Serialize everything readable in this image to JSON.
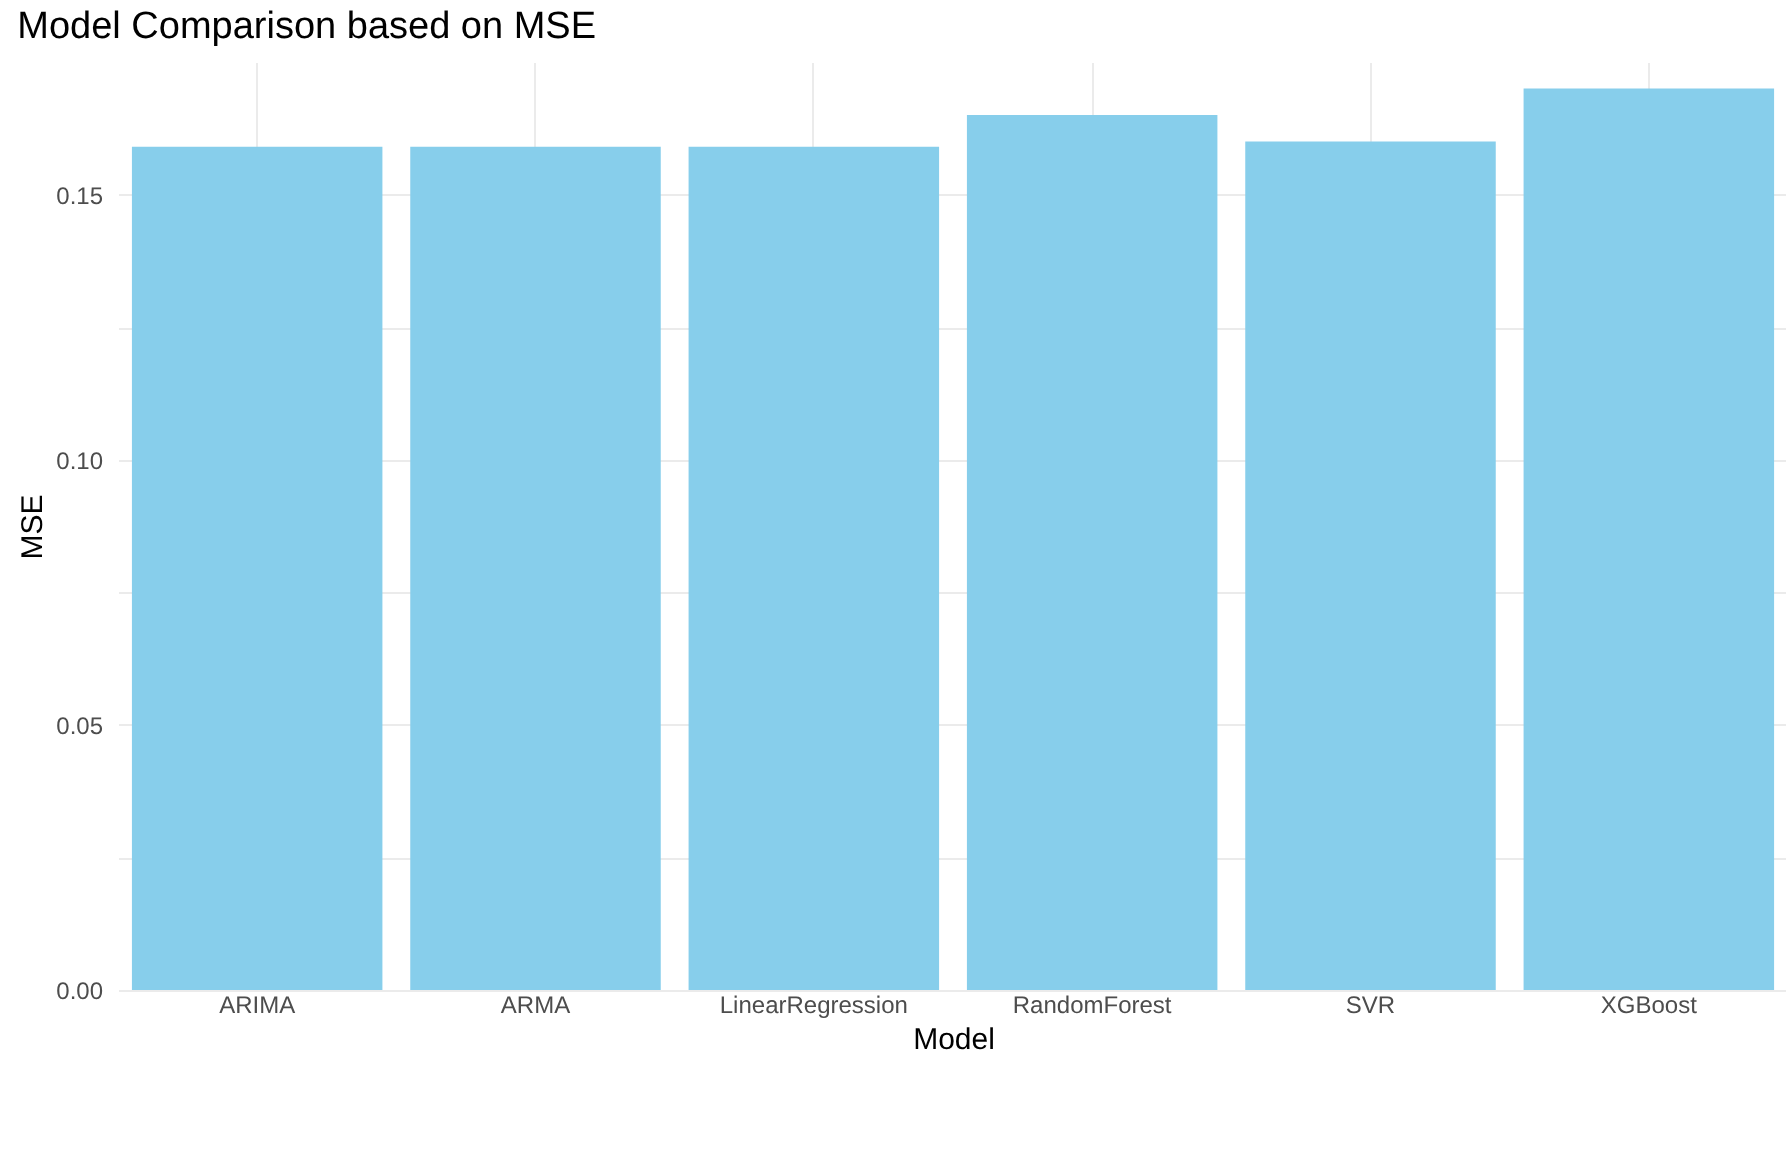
{
  "chart_data": {
    "type": "bar",
    "title": "Model Comparison based on MSE",
    "xlabel": "Model",
    "ylabel": "MSE",
    "categories": [
      "ARIMA",
      "ARMA",
      "LinearRegression",
      "RandomForest",
      "SVR",
      "XGBoost"
    ],
    "values": [
      0.159,
      0.159,
      0.159,
      0.165,
      0.16,
      0.17
    ],
    "color": "#87ceeb",
    "ylim": [
      0,
      0.175
    ],
    "yticks": [
      {
        "value": 0,
        "label": "0.00"
      },
      {
        "value": 0.025,
        "label": null
      },
      {
        "value": 0.05,
        "label": "0.05"
      },
      {
        "value": 0.075,
        "label": null
      },
      {
        "value": 0.1,
        "label": "0.10"
      },
      {
        "value": 0.125,
        "label": null
      },
      {
        "value": 0.15,
        "label": "0.15"
      }
    ],
    "grid": true
  }
}
